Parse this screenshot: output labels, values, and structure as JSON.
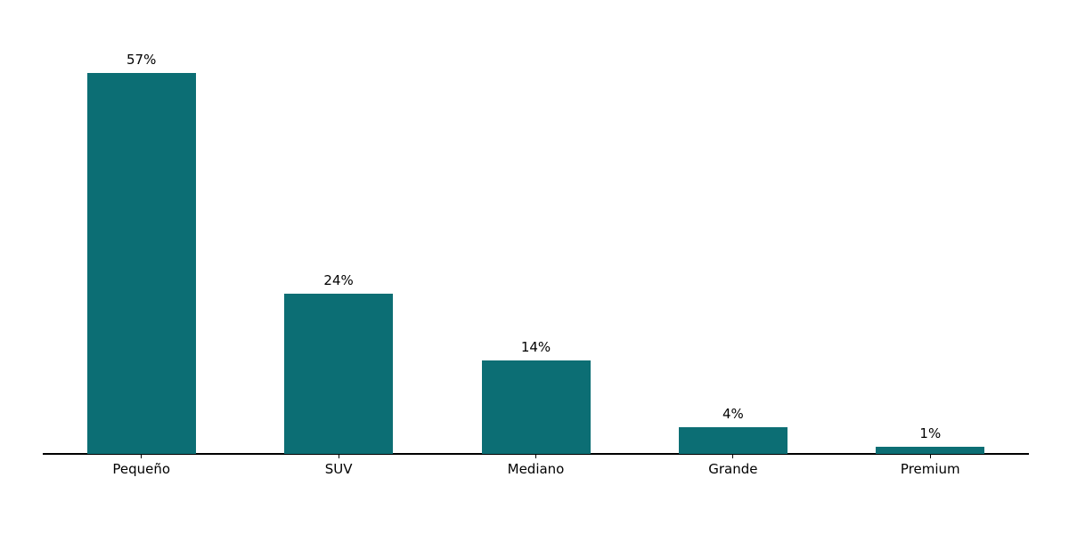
{
  "chart_data": {
    "type": "bar",
    "categories": [
      "Pequeño",
      "SUV",
      "Mediano",
      "Grande",
      "Premium"
    ],
    "values": [
      57,
      24,
      14,
      4,
      1
    ],
    "value_labels": [
      "57%",
      "24%",
      "14%",
      "4%",
      "1%"
    ],
    "title": "",
    "xlabel": "",
    "ylabel": "",
    "ylim": [
      0,
      60
    ],
    "grid": false,
    "legend": null,
    "bar_color": "#0c6e74",
    "axis_color": "#000000",
    "text_color": "#000000"
  }
}
